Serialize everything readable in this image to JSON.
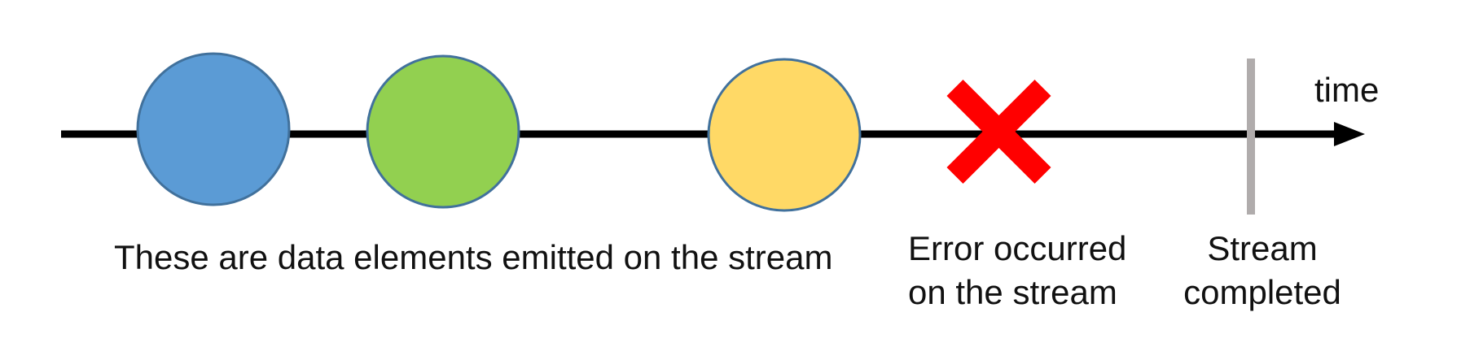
{
  "time_label": "time",
  "labels": {
    "data_elements": "These are data elements emitted on the stream",
    "error": [
      "Error occurred",
      "on the stream"
    ],
    "completed": [
      "Stream",
      "completed"
    ]
  },
  "colors": {
    "axis": "#000000",
    "element_blue": "#5b9bd5",
    "element_green": "#92d050",
    "element_yellow": "#ffd966",
    "element_stroke": "#41719c",
    "error_x": "#ff0000",
    "completion_bar": "#b0acac"
  },
  "icons": {
    "error": "error-x-icon",
    "completion": "completion-bar"
  }
}
